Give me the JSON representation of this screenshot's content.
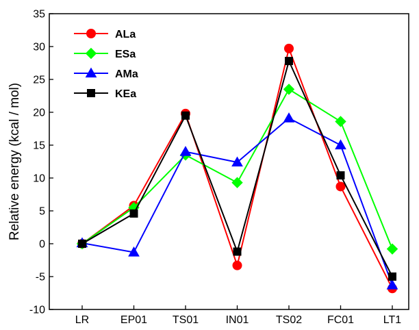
{
  "chart_data": {
    "type": "line",
    "title": "",
    "xlabel": "",
    "ylabel": "Relative energy (kcal / mol)",
    "categories": [
      "LR",
      "EP01",
      "TS01",
      "IN01",
      "TS02",
      "FC01",
      "LT1"
    ],
    "ylim": [
      -10,
      35
    ],
    "yticks": [
      -10,
      -5,
      0,
      5,
      10,
      15,
      20,
      25,
      30,
      35
    ],
    "grid": false,
    "legend_position": "top-left",
    "series": [
      {
        "name": "ALa",
        "color": "#ff0000",
        "marker": "circle",
        "values": [
          0,
          5.8,
          19.8,
          -3.3,
          29.7,
          8.7,
          -6.8
        ]
      },
      {
        "name": "ESa",
        "color": "#00ff00",
        "marker": "diamond",
        "values": [
          0,
          5.5,
          13.5,
          9.3,
          23.5,
          18.6,
          -0.8
        ]
      },
      {
        "name": "AMa",
        "color": "#0000ff",
        "marker": "triangle",
        "values": [
          0.1,
          -1.3,
          14.0,
          12.4,
          19.1,
          15.0,
          -6.3
        ]
      },
      {
        "name": "KEa",
        "color": "#000000",
        "marker": "square",
        "values": [
          0,
          4.6,
          19.5,
          -1.2,
          27.8,
          10.4,
          -5.0
        ]
      }
    ]
  }
}
